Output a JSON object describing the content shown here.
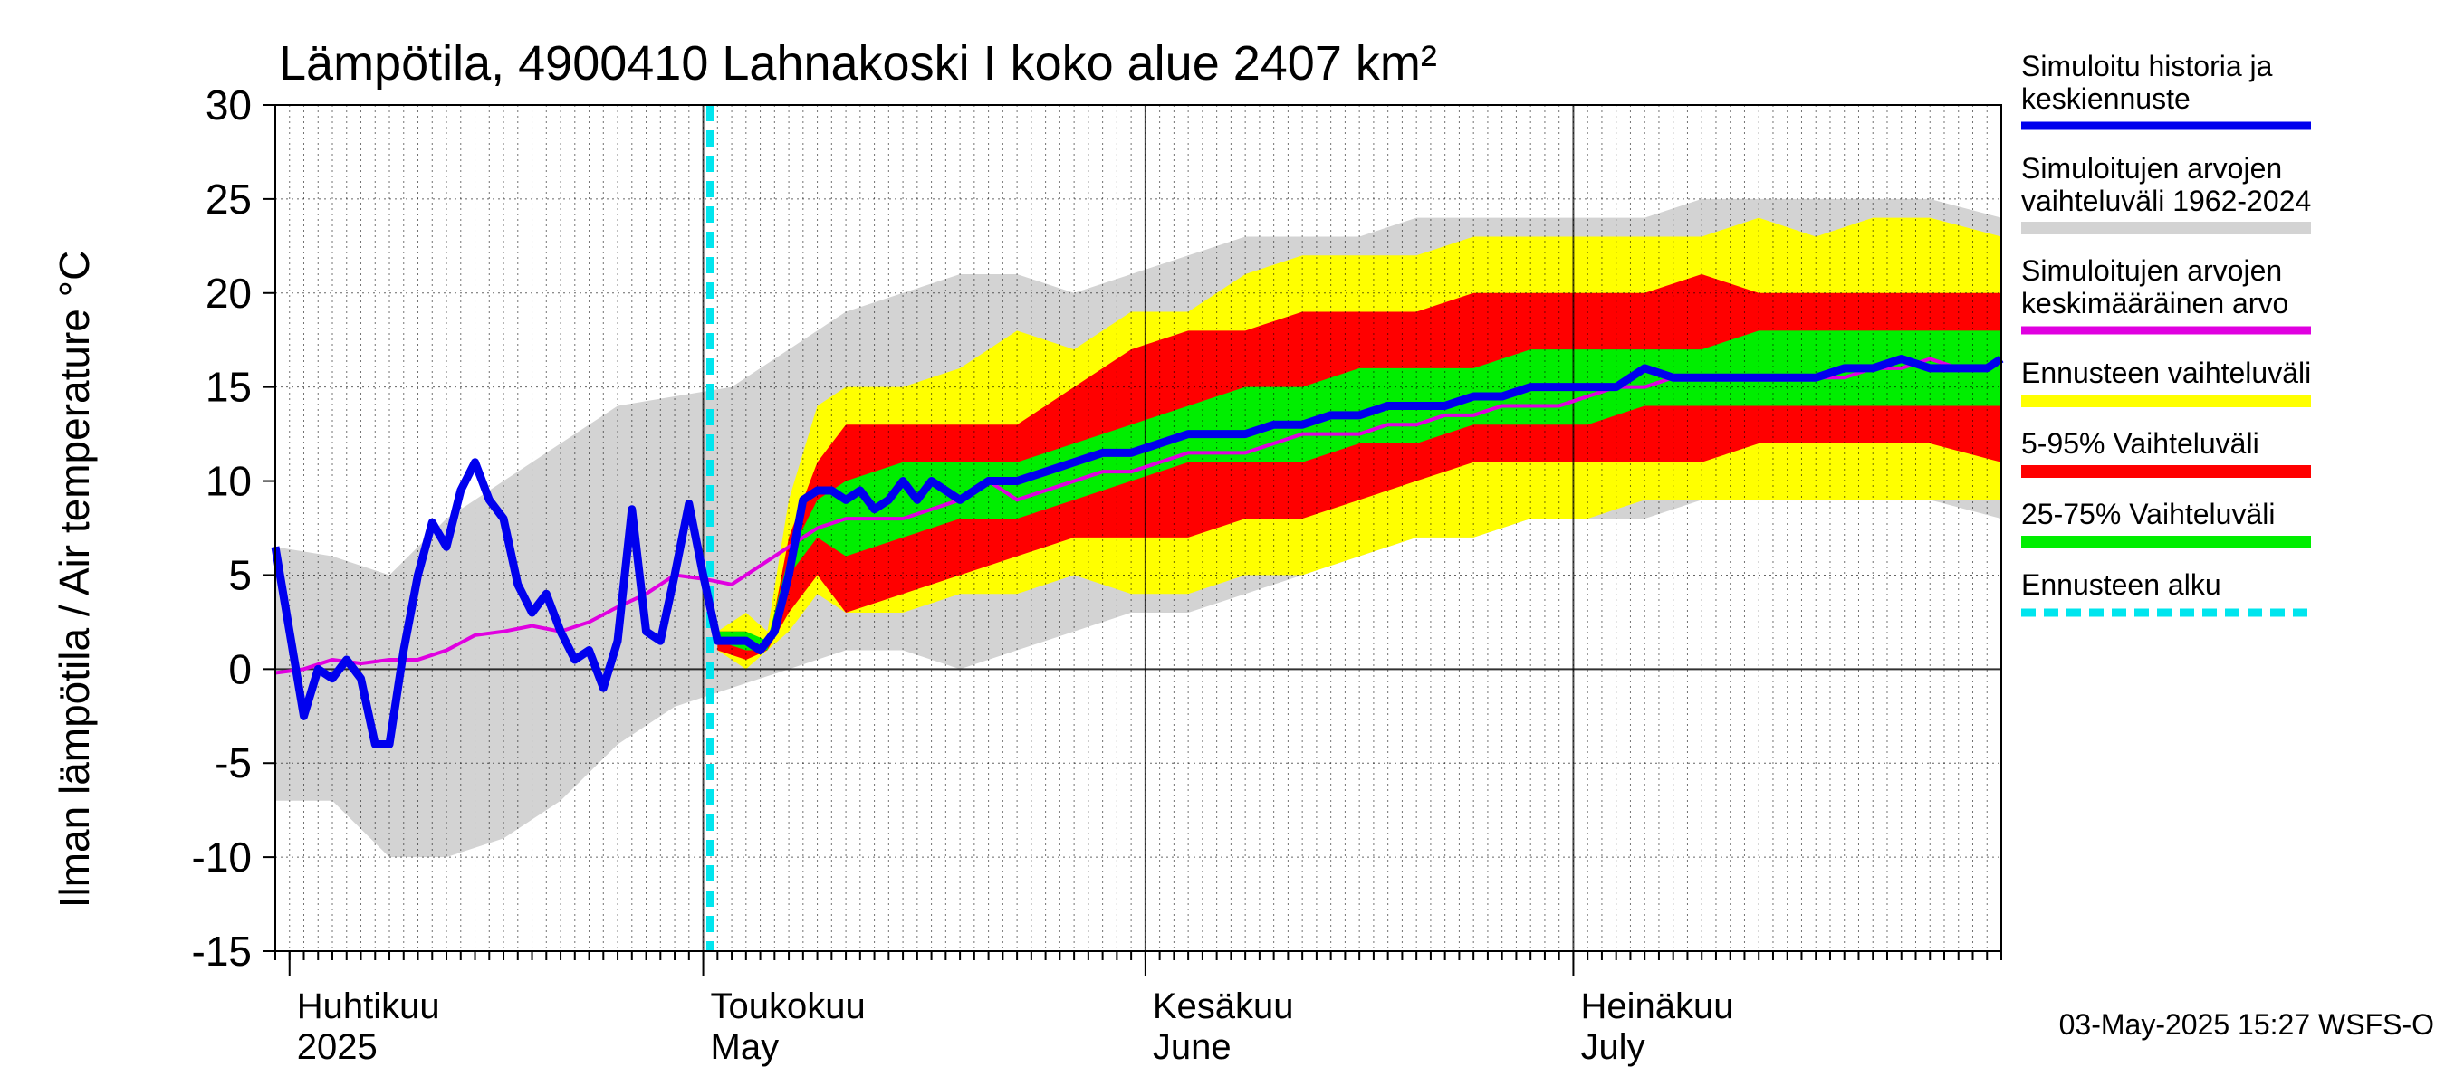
{
  "chart_data": {
    "type": "area",
    "title": "Lämpötila, 4900410 Lahnakoski I koko alue 2407 km²",
    "ylabel": "Ilman lämpötila / Air temperature   °C",
    "ylim": [
      -15,
      30
    ],
    "y_ticks": [
      30,
      25,
      20,
      15,
      10,
      5,
      0,
      -5,
      -10,
      -15
    ],
    "x_range_days": [
      0,
      121
    ],
    "forecast_start_day": 30.5,
    "month_labels": [
      {
        "day": 1,
        "fi": "Huhtikuu",
        "en": "2025"
      },
      {
        "day": 30,
        "fi": "Toukokuu",
        "en": "May"
      },
      {
        "day": 61,
        "fi": "Kesäkuu",
        "en": "June"
      },
      {
        "day": 91,
        "fi": "Heinäkuu",
        "en": "July"
      }
    ],
    "legend": [
      {
        "label1": "Simuloitu historia ja",
        "label2": "keskiennuste",
        "color": "#0000ee",
        "style": "line"
      },
      {
        "label1": "Simuloitujen arvojen",
        "label2": "vaihteluväli 1962-2024",
        "color": "#d3d3d3",
        "style": "band"
      },
      {
        "label1": "Simuloitujen arvojen",
        "label2": "keskimääräinen arvo",
        "color": "#e000e0",
        "style": "line"
      },
      {
        "label1": "Ennusteen vaihteluväli",
        "label2": "",
        "color": "#ffff00",
        "style": "band"
      },
      {
        "label1": "5-95% Vaihteluväli",
        "label2": "",
        "color": "#ff0000",
        "style": "band"
      },
      {
        "label1": "25-75% Vaihteluväli",
        "label2": "",
        "color": "#00ee00",
        "style": "band"
      },
      {
        "label1": "Ennusteen alku",
        "label2": "",
        "color": "#00e5ee",
        "style": "dash"
      }
    ],
    "series": [
      {
        "name": "Simuloitujen arvojen vaihteluväli 1962-2024",
        "x": [
          0,
          4,
          8,
          12,
          16,
          20,
          24,
          28,
          32,
          36,
          40,
          44,
          48,
          52,
          56,
          60,
          64,
          68,
          72,
          76,
          80,
          84,
          88,
          92,
          96,
          100,
          104,
          108,
          112,
          116,
          121
        ],
        "upper": [
          6.5,
          6,
          5,
          8,
          10,
          12,
          14,
          14.5,
          15,
          17,
          19,
          20,
          21,
          21,
          20,
          21,
          22,
          23,
          23,
          23,
          24,
          24,
          24,
          24,
          24,
          25,
          25,
          25,
          25,
          25,
          24
        ],
        "lower": [
          -7,
          -7,
          -10,
          -10,
          -9,
          -7,
          -4,
          -2,
          -1,
          0,
          1,
          1,
          0,
          1,
          2,
          3,
          3,
          4,
          5,
          6,
          7,
          7,
          8,
          8,
          8,
          9,
          9,
          9,
          9,
          9,
          8
        ]
      },
      {
        "name": "Ennusteen vaihteluväli",
        "x": [
          31,
          33,
          34.5,
          36,
          38,
          40,
          44,
          48,
          52,
          56,
          60,
          64,
          68,
          72,
          76,
          80,
          84,
          88,
          92,
          96,
          100,
          104,
          108,
          112,
          116,
          121
        ],
        "upper": [
          2,
          3,
          2,
          9,
          14,
          15,
          15,
          16,
          18,
          17,
          19,
          19,
          21,
          22,
          22,
          22,
          23,
          23,
          23,
          23,
          23,
          24,
          23,
          24,
          24,
          23
        ],
        "lower": [
          1,
          0,
          1,
          2,
          4,
          3,
          3,
          4,
          4,
          5,
          4,
          4,
          5,
          5,
          6,
          7,
          7,
          8,
          8,
          9,
          9,
          9,
          9,
          9,
          9,
          9
        ]
      },
      {
        "name": "5-95% Vaihteluväli",
        "x": [
          31,
          33,
          34.5,
          36,
          38,
          40,
          44,
          48,
          52,
          56,
          60,
          64,
          68,
          72,
          76,
          80,
          84,
          88,
          92,
          96,
          100,
          104,
          108,
          112,
          116,
          121
        ],
        "upper": [
          2,
          2,
          1,
          7,
          11,
          13,
          13,
          13,
          13,
          15,
          17,
          18,
          18,
          19,
          19,
          19,
          20,
          20,
          20,
          20,
          21,
          20,
          20,
          20,
          20,
          20
        ],
        "lower": [
          1,
          0.5,
          1,
          3,
          5,
          3,
          4,
          5,
          6,
          7,
          7,
          7,
          8,
          8,
          9,
          10,
          11,
          11,
          11,
          11,
          11,
          12,
          12,
          12,
          12,
          11
        ]
      },
      {
        "name": "25-75% Vaihteluväli",
        "x": [
          31,
          33,
          34.5,
          36,
          38,
          40,
          44,
          48,
          52,
          56,
          60,
          64,
          68,
          72,
          76,
          80,
          84,
          88,
          92,
          96,
          100,
          104,
          108,
          112,
          116,
          121
        ],
        "upper": [
          2,
          2,
          1.5,
          6,
          9,
          10,
          11,
          11,
          11,
          12,
          13,
          14,
          15,
          15,
          16,
          16,
          16,
          17,
          17,
          17,
          17,
          18,
          18,
          18,
          18,
          18
        ],
        "lower": [
          1.5,
          1,
          1,
          5,
          7,
          6,
          7,
          8,
          8,
          9,
          10,
          11,
          11,
          11,
          12,
          12,
          13,
          13,
          13,
          14,
          14,
          14,
          14,
          14,
          14,
          14
        ]
      },
      {
        "name": "Simuloitujen arvojen keskimääräinen arvo",
        "x": [
          0,
          2,
          4,
          6,
          8,
          10,
          12,
          14,
          16,
          18,
          20,
          22,
          24,
          26,
          28,
          30,
          32,
          34,
          36,
          38,
          40,
          42,
          44,
          46,
          48,
          50,
          52,
          54,
          56,
          58,
          60,
          62,
          64,
          66,
          68,
          70,
          72,
          74,
          76,
          78,
          80,
          82,
          84,
          86,
          88,
          90,
          92,
          94,
          96,
          98,
          100,
          102,
          104,
          106,
          108,
          110,
          112,
          114,
          116,
          118,
          120,
          121
        ],
        "y": [
          -0.2,
          0,
          0.5,
          0.3,
          0.5,
          0.5,
          1,
          1.8,
          2,
          2.3,
          2,
          2.5,
          3.3,
          4,
          5,
          4.8,
          4.5,
          5.5,
          6.5,
          7.5,
          8,
          8,
          8,
          8.5,
          9,
          10,
          9,
          9.5,
          10,
          10.5,
          10.5,
          11,
          11.5,
          11.5,
          11.5,
          12,
          12.5,
          12.5,
          12.5,
          13,
          13,
          13.5,
          13.5,
          14,
          14,
          14,
          14.5,
          15,
          15,
          15.5,
          15.5,
          15.5,
          15.5,
          15.5,
          15.5,
          15.5,
          16,
          16,
          16.5,
          16,
          16,
          16.5
        ]
      },
      {
        "name": "Simuloitu historia ja keskiennuste",
        "x": [
          0,
          1,
          2,
          3,
          4,
          5,
          6,
          7,
          8,
          9,
          10,
          11,
          12,
          13,
          14,
          15,
          16,
          17,
          18,
          19,
          20,
          21,
          22,
          23,
          24,
          25,
          26,
          27,
          28,
          29,
          30,
          31,
          32,
          33,
          34,
          35,
          36,
          37,
          38,
          39,
          40,
          41,
          42,
          43,
          44,
          45,
          46,
          47,
          48,
          49,
          50,
          52,
          54,
          56,
          58,
          60,
          62,
          64,
          66,
          68,
          70,
          72,
          74,
          76,
          78,
          80,
          82,
          84,
          86,
          88,
          90,
          92,
          94,
          96,
          98,
          100,
          102,
          104,
          106,
          108,
          110,
          112,
          114,
          116,
          118,
          120,
          121
        ],
        "y": [
          6.5,
          2,
          -2.5,
          0,
          -0.5,
          0.5,
          -0.5,
          -4,
          -4,
          1,
          5,
          7.8,
          6.5,
          9.5,
          11,
          9,
          8,
          4.5,
          3,
          4,
          2,
          0.5,
          1,
          -1,
          1.5,
          8.5,
          2,
          1.5,
          5,
          8.8,
          5,
          1.5,
          1.5,
          1.5,
          1,
          2,
          5,
          9,
          9.5,
          9.5,
          9,
          9.5,
          8.5,
          9,
          10,
          9,
          10,
          9.5,
          9,
          9.5,
          10,
          10,
          10.5,
          11,
          11.5,
          11.5,
          12,
          12.5,
          12.5,
          12.5,
          13,
          13,
          13.5,
          13.5,
          14,
          14,
          14,
          14.5,
          14.5,
          15,
          15,
          15,
          15,
          16,
          15.5,
          15.5,
          15.5,
          15.5,
          15.5,
          15.5,
          16,
          16,
          16.5,
          16,
          16,
          16,
          16.5
        ]
      }
    ],
    "timestamp": "03-May-2025 15:27 WSFS-O"
  }
}
